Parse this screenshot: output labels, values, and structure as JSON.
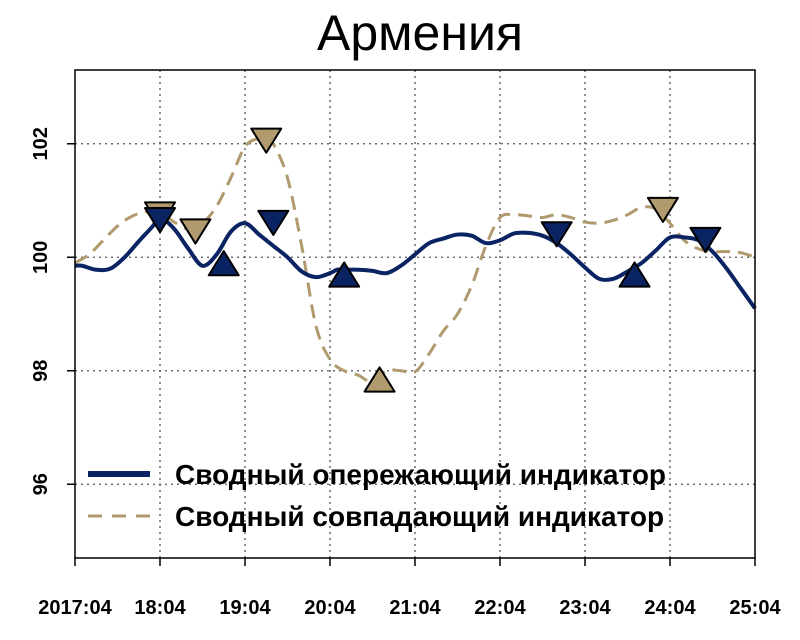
{
  "chart_data": {
    "type": "line",
    "title": "Армения",
    "xlabel": "",
    "ylabel": "",
    "x_ticks": [
      "2017:04",
      "18:04",
      "19:04",
      "20:04",
      "21:04",
      "22:04",
      "23:04",
      "24:04",
      "25:04"
    ],
    "y_ticks": [
      "96",
      "98",
      "100",
      "102"
    ],
    "xlim": [
      0,
      96
    ],
    "ylim": [
      94.7,
      103.3
    ],
    "grid": true,
    "legend_position": "bottom",
    "series": [
      {
        "name": "Сводный опережающий индикатор",
        "color": "#0a2463",
        "style": "solid",
        "x": [
          0,
          1,
          3,
          5,
          7,
          9,
          11,
          12,
          14,
          16,
          18,
          20,
          22,
          24,
          26,
          28,
          30,
          32,
          34,
          36,
          37,
          38,
          40,
          42,
          44,
          46,
          48,
          50,
          52,
          54,
          56,
          58,
          60,
          62,
          64,
          66,
          68,
          70,
          72,
          74,
          76,
          78,
          80,
          82,
          84,
          86,
          88,
          90,
          92,
          94,
          96
        ],
        "y": [
          99.85,
          99.85,
          99.78,
          99.8,
          100.0,
          100.28,
          100.55,
          100.7,
          100.5,
          100.15,
          99.85,
          100.05,
          100.45,
          100.6,
          100.4,
          100.2,
          100.0,
          99.75,
          99.65,
          99.72,
          99.78,
          99.78,
          99.78,
          99.76,
          99.72,
          99.85,
          100.05,
          100.25,
          100.33,
          100.4,
          100.38,
          100.25,
          100.3,
          100.42,
          100.43,
          100.38,
          100.25,
          100.05,
          99.82,
          99.62,
          99.62,
          99.75,
          99.9,
          100.12,
          100.35,
          100.35,
          100.3,
          100.1,
          99.8,
          99.45,
          99.1
        ],
        "markers": [
          {
            "x": 12,
            "y": 100.7,
            "dir": "down"
          },
          {
            "x": 21,
            "y": 99.85,
            "dir": "up"
          },
          {
            "x": 28,
            "y": 100.65,
            "dir": "down"
          },
          {
            "x": 38,
            "y": 99.65,
            "dir": "up"
          },
          {
            "x": 68,
            "y": 100.45,
            "dir": "down"
          },
          {
            "x": 79,
            "y": 99.65,
            "dir": "up"
          },
          {
            "x": 89,
            "y": 100.35,
            "dir": "down"
          }
        ]
      },
      {
        "name": "Сводный совпадающий индикатор",
        "color": "#b09a6e",
        "style": "dashed",
        "x": [
          0,
          2,
          4,
          6,
          8,
          10,
          12,
          14,
          16,
          18,
          20,
          22,
          24,
          26,
          27,
          28,
          30,
          32,
          34,
          36,
          38,
          40,
          42,
          44,
          46,
          48,
          50,
          52,
          54,
          56,
          58,
          60,
          62,
          64,
          66,
          68,
          70,
          72,
          74,
          76,
          78,
          80,
          82,
          84,
          86,
          88,
          90,
          92,
          94,
          96
        ],
        "y": [
          99.9,
          100.05,
          100.3,
          100.55,
          100.72,
          100.8,
          100.8,
          100.62,
          100.5,
          100.6,
          100.9,
          101.4,
          101.95,
          102.1,
          102.1,
          102.0,
          101.4,
          100.2,
          98.8,
          98.2,
          98.0,
          97.92,
          97.8,
          98.0,
          98.0,
          97.98,
          98.3,
          98.7,
          99.0,
          99.5,
          100.2,
          100.7,
          100.75,
          100.73,
          100.7,
          100.75,
          100.7,
          100.62,
          100.6,
          100.65,
          100.75,
          100.88,
          100.85,
          100.6,
          100.3,
          100.15,
          100.1,
          100.1,
          100.08,
          100.0
        ],
        "markers": [
          {
            "x": 12,
            "y": 100.8,
            "dir": "down"
          },
          {
            "x": 17,
            "y": 100.5,
            "dir": "down"
          },
          {
            "x": 27,
            "y": 102.1,
            "dir": "down"
          },
          {
            "x": 43,
            "y": 97.8,
            "dir": "up"
          },
          {
            "x": 83,
            "y": 100.88,
            "dir": "down"
          }
        ]
      }
    ]
  }
}
